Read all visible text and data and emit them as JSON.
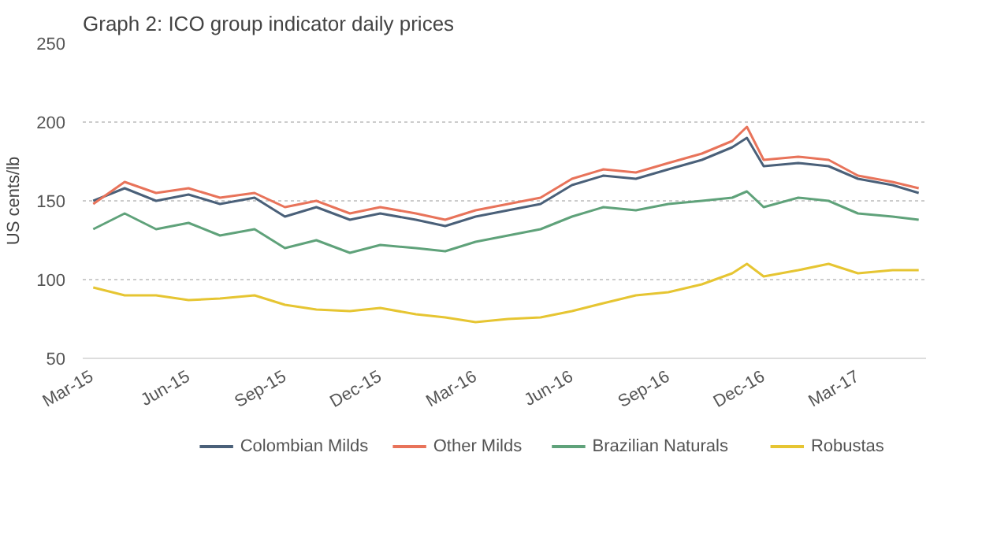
{
  "chart_data": {
    "type": "line",
    "title": "Graph 2: ICO group indicator daily prices",
    "ylabel": "US cents/lb",
    "x": [
      "2015-03-02",
      "2015-04-01",
      "2015-05-01",
      "2015-06-01",
      "2015-07-01",
      "2015-08-03",
      "2015-09-01",
      "2015-10-01",
      "2015-11-02",
      "2015-12-01",
      "2016-01-04",
      "2016-02-01",
      "2016-03-01",
      "2016-04-01",
      "2016-05-02",
      "2016-06-01",
      "2016-07-01",
      "2016-08-01",
      "2016-09-01",
      "2016-10-03",
      "2016-11-01",
      "2016-11-15",
      "2016-12-01",
      "2017-01-03",
      "2017-02-01",
      "2017-03-01",
      "2017-04-03",
      "2017-04-28"
    ],
    "series": [
      {
        "name": "Colombian Milds",
        "color": "#4a6079",
        "values": [
          150,
          158,
          150,
          154,
          148,
          152,
          140,
          146,
          138,
          142,
          138,
          134,
          140,
          144,
          148,
          160,
          166,
          164,
          170,
          176,
          184,
          190,
          172,
          174,
          172,
          164,
          160,
          155
        ]
      },
      {
        "name": "Other Milds",
        "color": "#e8735a",
        "values": [
          148,
          162,
          155,
          158,
          152,
          155,
          146,
          150,
          142,
          146,
          142,
          138,
          144,
          148,
          152,
          164,
          170,
          168,
          174,
          180,
          188,
          197,
          176,
          178,
          176,
          166,
          162,
          158
        ]
      },
      {
        "name": "Brazilian Naturals",
        "color": "#5fa27a",
        "values": [
          132,
          142,
          132,
          136,
          128,
          132,
          120,
          125,
          117,
          122,
          120,
          118,
          124,
          128,
          132,
          140,
          146,
          144,
          148,
          150,
          152,
          156,
          146,
          152,
          150,
          142,
          140,
          138
        ]
      },
      {
        "name": "Robustas",
        "color": "#e6c532",
        "values": [
          95,
          90,
          90,
          87,
          88,
          90,
          84,
          81,
          80,
          82,
          78,
          76,
          73,
          75,
          76,
          80,
          85,
          90,
          92,
          97,
          104,
          110,
          102,
          106,
          110,
          104,
          106,
          106
        ]
      }
    ],
    "xlim": [
      "2015-02-20",
      "2017-05-05"
    ],
    "xticks": [
      {
        "value": "2015-03-01",
        "label": "Mar-15"
      },
      {
        "value": "2015-06-01",
        "label": "Jun-15"
      },
      {
        "value": "2015-09-01",
        "label": "Sep-15"
      },
      {
        "value": "2015-12-01",
        "label": "Dec-15"
      },
      {
        "value": "2016-03-01",
        "label": "Mar-16"
      },
      {
        "value": "2016-06-01",
        "label": "Jun-16"
      },
      {
        "value": "2016-09-01",
        "label": "Sep-16"
      },
      {
        "value": "2016-12-01",
        "label": "Dec-16"
      },
      {
        "value": "2017-03-01",
        "label": "Mar-17"
      }
    ],
    "ylim": [
      50,
      250
    ],
    "yticks": [
      50,
      100,
      150,
      200,
      250
    ],
    "grid": "y",
    "legend": "bottom",
    "line_style": "solid"
  }
}
